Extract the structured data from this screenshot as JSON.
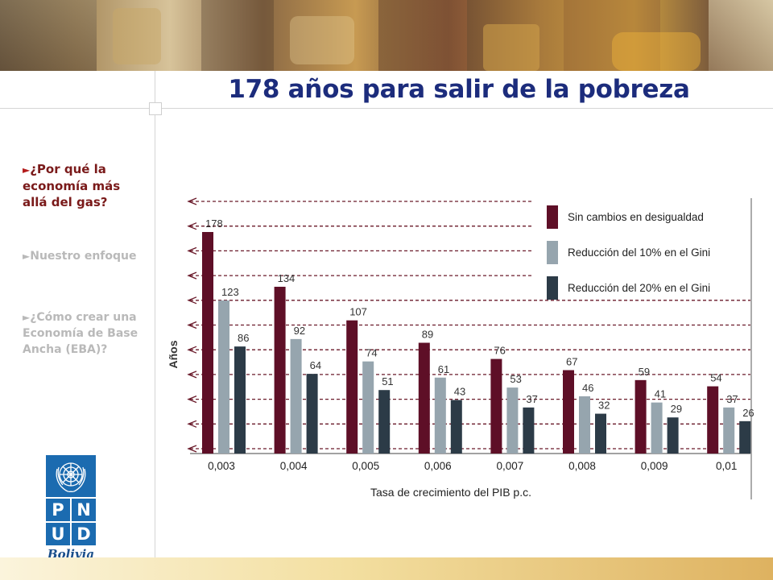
{
  "page": {
    "title": "178 años para salir de la pobreza"
  },
  "nav": {
    "items": [
      {
        "arrow": "►",
        "label": "¿Por qué la economía más allá del gas?",
        "active": true
      },
      {
        "arrow": "►",
        "label": "Nuestro enfoque",
        "active": false
      },
      {
        "arrow": "►",
        "label": "¿Cómo crear una Economía de Base Ancha (EBA)?",
        "active": false
      }
    ]
  },
  "logo": {
    "letters": [
      "P",
      "N",
      "U",
      "D"
    ],
    "country": "Bolivia"
  },
  "colors": {
    "title": "#1c2c7c",
    "nav_active": "#7a1a1a",
    "nav_inactive": "#b9b9b9",
    "series_1": "#5e0f27",
    "series_2": "#96a5ae",
    "series_3": "#2c3b47",
    "guide_line": "#6a1a2a"
  },
  "chart_data": {
    "type": "bar",
    "xlabel": "Tasa de crecimiento del PIB p.c.",
    "ylabel": "Años",
    "categories": [
      "0,003",
      "0,004",
      "0,005",
      "0,006",
      "0,007",
      "0,008",
      "0,009",
      "0,01"
    ],
    "series": [
      {
        "name": "Sin cambios en desigualdad",
        "color": "#5e0f27",
        "values": [
          178,
          134,
          107,
          89,
          76,
          67,
          59,
          54
        ]
      },
      {
        "name": "Reducción del 10% en el Gini",
        "color": "#96a5ae",
        "values": [
          123,
          92,
          74,
          61,
          53,
          46,
          41,
          37
        ]
      },
      {
        "name": "Reducción del 20% en el Gini",
        "color": "#2c3b47",
        "values": [
          86,
          64,
          51,
          43,
          37,
          32,
          29,
          26
        ]
      }
    ],
    "ylim": [
      0,
      200
    ],
    "legend": "top-right",
    "grid": "dashed horizontal guide lines with arrowheads pointing to the y-axis"
  }
}
